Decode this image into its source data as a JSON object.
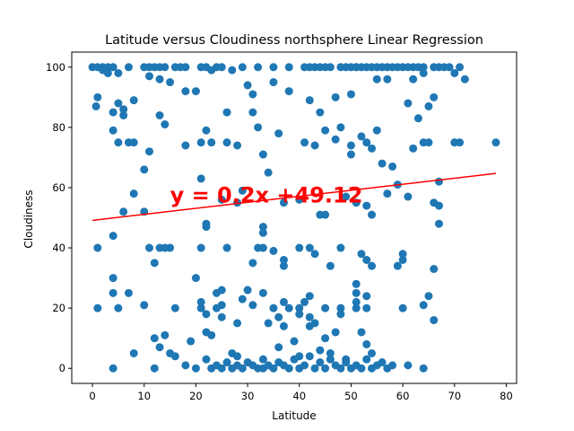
{
  "chart_data": {
    "type": "scatter",
    "title": "Latitude versus Cloudiness northsphere Linear Regression",
    "xlabel": "Latitude",
    "ylabel": "Cloudiness",
    "xlim": [
      -4,
      82
    ],
    "ylim": [
      -5,
      105
    ],
    "xticks": [
      0,
      10,
      20,
      30,
      40,
      50,
      60,
      70,
      80
    ],
    "yticks": [
      0,
      20,
      40,
      60,
      80,
      100
    ],
    "grid": false,
    "point_color": "#1f77b4",
    "series": [
      {
        "points": [
          [
            0,
            100
          ],
          [
            1,
            100
          ],
          [
            2,
            100
          ],
          [
            2,
            99
          ],
          [
            3,
            100
          ],
          [
            3,
            98
          ],
          [
            4,
            100
          ],
          [
            5,
            98
          ],
          [
            7,
            100
          ],
          [
            10,
            100
          ],
          [
            11,
            100
          ],
          [
            12,
            100
          ],
          [
            13,
            100
          ],
          [
            14,
            100
          ],
          [
            16,
            100
          ],
          [
            17,
            100
          ],
          [
            18,
            100
          ],
          [
            21,
            100
          ],
          [
            22,
            100
          ],
          [
            24,
            100
          ],
          [
            25,
            100
          ],
          [
            27,
            99
          ],
          [
            29,
            100
          ],
          [
            32,
            100
          ],
          [
            35,
            100
          ],
          [
            38,
            100
          ],
          [
            41,
            100
          ],
          [
            42,
            100
          ],
          [
            43,
            100
          ],
          [
            44,
            100
          ],
          [
            45,
            100
          ],
          [
            46,
            100
          ],
          [
            48,
            100
          ],
          [
            49,
            100
          ],
          [
            50,
            100
          ],
          [
            51,
            100
          ],
          [
            52,
            100
          ],
          [
            53,
            100
          ],
          [
            54,
            100
          ],
          [
            55,
            100
          ],
          [
            56,
            100
          ],
          [
            57,
            100
          ],
          [
            58,
            100
          ],
          [
            59,
            100
          ],
          [
            60,
            100
          ],
          [
            61,
            100
          ],
          [
            62,
            100
          ],
          [
            63,
            100
          ],
          [
            64,
            100
          ],
          [
            66,
            100
          ],
          [
            67,
            100
          ],
          [
            68,
            100
          ],
          [
            69,
            100
          ],
          [
            71,
            100
          ],
          [
            1,
            90
          ],
          [
            0.7,
            87
          ],
          [
            5,
            88
          ],
          [
            6,
            86
          ],
          [
            8,
            89
          ],
          [
            4,
            85
          ],
          [
            11,
            97
          ],
          [
            13,
            96
          ],
          [
            15,
            95
          ],
          [
            18,
            92
          ],
          [
            20,
            92
          ],
          [
            23,
            99
          ],
          [
            26,
            85
          ],
          [
            30,
            94
          ],
          [
            31,
            91
          ],
          [
            31,
            85
          ],
          [
            35,
            95
          ],
          [
            38,
            92
          ],
          [
            42,
            89
          ],
          [
            44,
            85
          ],
          [
            47,
            90
          ],
          [
            50,
            91
          ],
          [
            51,
            100
          ],
          [
            55,
            96
          ],
          [
            57,
            96
          ],
          [
            62,
            96
          ],
          [
            64,
            98
          ],
          [
            65,
            87
          ],
          [
            66,
            90
          ],
          [
            70,
            98
          ],
          [
            72,
            96
          ],
          [
            6,
            84
          ],
          [
            4,
            79
          ],
          [
            5,
            75
          ],
          [
            7,
            75
          ],
          [
            8,
            75
          ],
          [
            11,
            72
          ],
          [
            13,
            84
          ],
          [
            14,
            81
          ],
          [
            18,
            74
          ],
          [
            21,
            75
          ],
          [
            22,
            79
          ],
          [
            23,
            75
          ],
          [
            26,
            75
          ],
          [
            28,
            74
          ],
          [
            32,
            80
          ],
          [
            33,
            71
          ],
          [
            34,
            65
          ],
          [
            36,
            78
          ],
          [
            41,
            75
          ],
          [
            43,
            74
          ],
          [
            45,
            79
          ],
          [
            47,
            76
          ],
          [
            48,
            80
          ],
          [
            50,
            71
          ],
          [
            50,
            74
          ],
          [
            52,
            77
          ],
          [
            53,
            75
          ],
          [
            54,
            73
          ],
          [
            55,
            79
          ],
          [
            56,
            68
          ],
          [
            58,
            67
          ],
          [
            61,
            88
          ],
          [
            62,
            73
          ],
          [
            63,
            83
          ],
          [
            64,
            75
          ],
          [
            65,
            75
          ],
          [
            67,
            62
          ],
          [
            70,
            75
          ],
          [
            71,
            75
          ],
          [
            78,
            75
          ],
          [
            10,
            66
          ],
          [
            8,
            58
          ],
          [
            10,
            52
          ],
          [
            6,
            52
          ],
          [
            21,
            63
          ],
          [
            22,
            48
          ],
          [
            25,
            56
          ],
          [
            28,
            55
          ],
          [
            29,
            59
          ],
          [
            33,
            47
          ],
          [
            33,
            45
          ],
          [
            37,
            55
          ],
          [
            40,
            56
          ],
          [
            44,
            51
          ],
          [
            45,
            51
          ],
          [
            49,
            57
          ],
          [
            51,
            55
          ],
          [
            53,
            54
          ],
          [
            54,
            51
          ],
          [
            57,
            58
          ],
          [
            59,
            61
          ],
          [
            66,
            55
          ],
          [
            67,
            54
          ],
          [
            67,
            48
          ],
          [
            61,
            57
          ],
          [
            1,
            40
          ],
          [
            4,
            44
          ],
          [
            11,
            40
          ],
          [
            12,
            35
          ],
          [
            13,
            40
          ],
          [
            14,
            40
          ],
          [
            15,
            40
          ],
          [
            21,
            40
          ],
          [
            22,
            47
          ],
          [
            26,
            40
          ],
          [
            31,
            35
          ],
          [
            32,
            40
          ],
          [
            33,
            40
          ],
          [
            35,
            39
          ],
          [
            37,
            34
          ],
          [
            37,
            36
          ],
          [
            40,
            40
          ],
          [
            42,
            40
          ],
          [
            43,
            38
          ],
          [
            46,
            34
          ],
          [
            48,
            40
          ],
          [
            52,
            38
          ],
          [
            53,
            36
          ],
          [
            54,
            34
          ],
          [
            59,
            34
          ],
          [
            60,
            36
          ],
          [
            60,
            38
          ],
          [
            66,
            33
          ],
          [
            1,
            20
          ],
          [
            4,
            30
          ],
          [
            4,
            25
          ],
          [
            5,
            20
          ],
          [
            7,
            25
          ],
          [
            10,
            21
          ],
          [
            12,
            10
          ],
          [
            13,
            7
          ],
          [
            14,
            11
          ],
          [
            16,
            4
          ],
          [
            16,
            20
          ],
          [
            19,
            9
          ],
          [
            20,
            30
          ],
          [
            21,
            22
          ],
          [
            21,
            20
          ],
          [
            22,
            12
          ],
          [
            22,
            18
          ],
          [
            23,
            11
          ],
          [
            24,
            25
          ],
          [
            24,
            20
          ],
          [
            25,
            26
          ],
          [
            25,
            17
          ],
          [
            25,
            21
          ],
          [
            27,
            5
          ],
          [
            28,
            15
          ],
          [
            29,
            23
          ],
          [
            30,
            26
          ],
          [
            31,
            21
          ],
          [
            33,
            25
          ],
          [
            34,
            15
          ],
          [
            35,
            20
          ],
          [
            36,
            17
          ],
          [
            36,
            7
          ],
          [
            37,
            14
          ],
          [
            37,
            22
          ],
          [
            38,
            20
          ],
          [
            39,
            9
          ],
          [
            40,
            18
          ],
          [
            40,
            20
          ],
          [
            41,
            22
          ],
          [
            42,
            17
          ],
          [
            42,
            24
          ],
          [
            42,
            14
          ],
          [
            43,
            15
          ],
          [
            44,
            6
          ],
          [
            45,
            20
          ],
          [
            45,
            10
          ],
          [
            47,
            12
          ],
          [
            48,
            20
          ],
          [
            48,
            18
          ],
          [
            49,
            3
          ],
          [
            51,
            28
          ],
          [
            51,
            25
          ],
          [
            51,
            20
          ],
          [
            51,
            22
          ],
          [
            52,
            12
          ],
          [
            53,
            24
          ],
          [
            53,
            20
          ],
          [
            54,
            5
          ],
          [
            60,
            20
          ],
          [
            64,
            21
          ],
          [
            65,
            24
          ],
          [
            66,
            16
          ],
          [
            4,
            0
          ],
          [
            8,
            5
          ],
          [
            12,
            0
          ],
          [
            15,
            5
          ],
          [
            18,
            1
          ],
          [
            20,
            0
          ],
          [
            22,
            3
          ],
          [
            23,
            0
          ],
          [
            24,
            1
          ],
          [
            25,
            0
          ],
          [
            26,
            2
          ],
          [
            27,
            0
          ],
          [
            28,
            1
          ],
          [
            29,
            0
          ],
          [
            30,
            2
          ],
          [
            31,
            1
          ],
          [
            32,
            0
          ],
          [
            33,
            0
          ],
          [
            34,
            1
          ],
          [
            35,
            0
          ],
          [
            36,
            2
          ],
          [
            37,
            1
          ],
          [
            38,
            0
          ],
          [
            39,
            3
          ],
          [
            40,
            0
          ],
          [
            41,
            1
          ],
          [
            42,
            4
          ],
          [
            43,
            0
          ],
          [
            44,
            2
          ],
          [
            45,
            0
          ],
          [
            46,
            3
          ],
          [
            47,
            1
          ],
          [
            48,
            0
          ],
          [
            49,
            2
          ],
          [
            50,
            0
          ],
          [
            51,
            1
          ],
          [
            52,
            0
          ],
          [
            53,
            3
          ],
          [
            54,
            0
          ],
          [
            55,
            1
          ],
          [
            56,
            2
          ],
          [
            57,
            0
          ],
          [
            58,
            1
          ],
          [
            61,
            1
          ],
          [
            64,
            0
          ],
          [
            28,
            4
          ],
          [
            33,
            3
          ],
          [
            40,
            4
          ],
          [
            46,
            5
          ],
          [
            53,
            8
          ]
        ]
      }
    ],
    "regression": {
      "slope": 0.2,
      "intercept": 49.12,
      "x_start": 0,
      "x_end": 78,
      "color": "#ff0000"
    },
    "annotation": {
      "text": "y = 0.2x +49.12",
      "x": 15,
      "y": 55,
      "color": "#ff0000"
    }
  }
}
